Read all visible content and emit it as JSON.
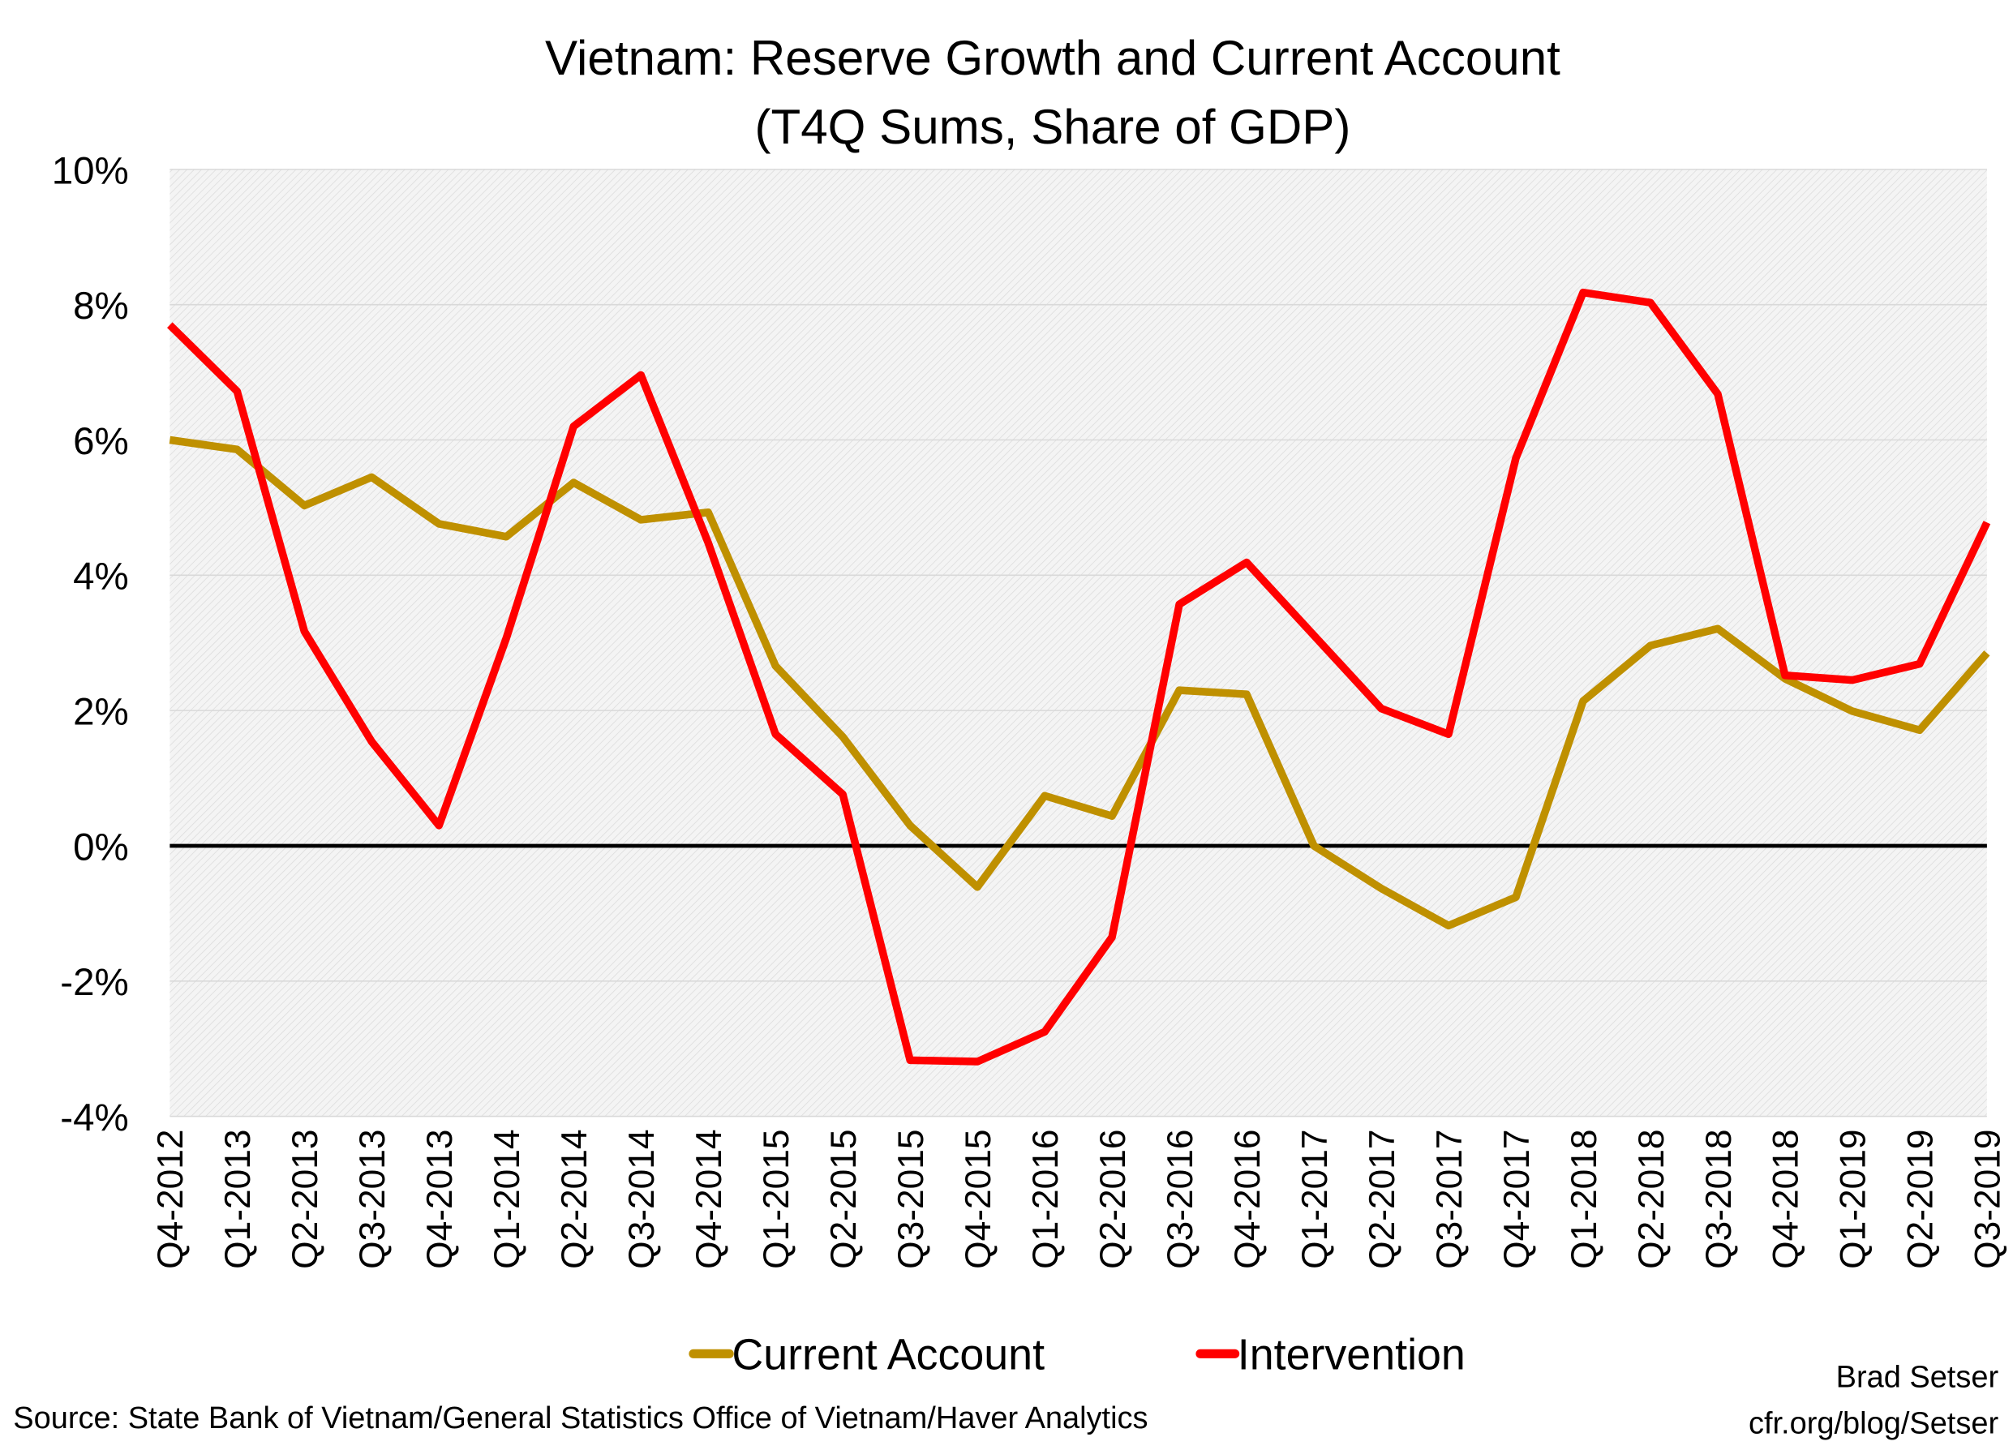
{
  "chart_data": {
    "type": "line",
    "title": "Vietnam: Reserve Growth and Current Account",
    "subtitle": "(T4Q Sums, Share of GDP)",
    "xlabel": "",
    "ylabel": "",
    "ylim": [
      -4,
      10
    ],
    "yticks": [
      "10%",
      "8%",
      "6%",
      "4%",
      "2%",
      "0%",
      "-2%",
      "-4%"
    ],
    "ytick_values": [
      10,
      8,
      6,
      4,
      2,
      0,
      -2,
      -4
    ],
    "grid": true,
    "legend_position": "bottom",
    "categories": [
      "Q4-2012",
      "Q1-2013",
      "Q2-2013",
      "Q3-2013",
      "Q4-2013",
      "Q1-2014",
      "Q2-2014",
      "Q3-2014",
      "Q4-2014",
      "Q1-2015",
      "Q2-2015",
      "Q3-2015",
      "Q4-2015",
      "Q1-2016",
      "Q2-2016",
      "Q3-2016",
      "Q4-2016",
      "Q1-2017",
      "Q2-2017",
      "Q3-2017",
      "Q4-2017",
      "Q1-2018",
      "Q2-2018",
      "Q3-2018",
      "Q4-2018",
      "Q1-2019",
      "Q2-2019",
      "Q3-2019"
    ],
    "series": [
      {
        "name": "Current Account",
        "color": "#bf9000",
        "values": [
          6.0,
          5.86,
          5.03,
          5.45,
          4.76,
          4.57,
          5.37,
          4.82,
          4.93,
          2.66,
          1.61,
          0.3,
          -0.61,
          0.74,
          0.44,
          2.3,
          2.24,
          0.0,
          -0.63,
          -1.18,
          -0.76,
          2.14,
          2.96,
          3.21,
          2.47,
          1.99,
          1.71,
          2.85
        ]
      },
      {
        "name": "Intervention",
        "color": "#ff0000",
        "values": [
          7.7,
          6.72,
          3.17,
          1.54,
          0.3,
          3.07,
          6.2,
          6.96,
          4.48,
          1.65,
          0.76,
          -3.17,
          -3.19,
          -2.75,
          -1.35,
          3.57,
          4.19,
          3.11,
          2.03,
          1.65,
          5.73,
          8.18,
          8.03,
          6.68,
          2.52,
          2.45,
          2.69,
          4.78
        ]
      }
    ]
  },
  "footer": {
    "source": "Source: State Bank of Vietnam/General Statistics Office of Vietnam/Haver Analytics",
    "author": "Brad Setser",
    "url": "cfr.org/blog/Setser"
  }
}
